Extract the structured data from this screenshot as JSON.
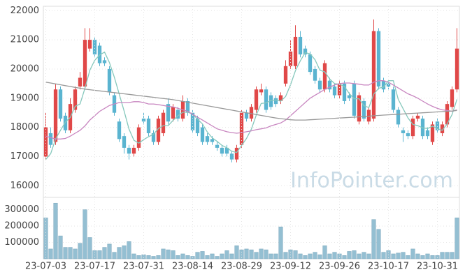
{
  "chart_data": [
    {
      "type": "candlestick",
      "watermark": "InfoPointer.com",
      "up_color": "#e04848",
      "down_color": "#5ab4d0",
      "open": [
        17000,
        17800,
        17500,
        19300,
        18400,
        17900,
        18600,
        19400,
        19400,
        20700,
        21000,
        20800,
        20300,
        20000,
        19100,
        18200,
        17700,
        17300,
        17100,
        17300,
        18300,
        18300,
        17800,
        17500,
        17800,
        18800,
        18300,
        18600,
        18300,
        18900,
        18500,
        18300,
        18000,
        17700,
        17600,
        17400,
        17300,
        17300,
        17100,
        16900,
        17400,
        18500,
        18300,
        18600,
        19200,
        19300,
        19100,
        19000,
        18900,
        19500,
        20100,
        20100,
        21100,
        20700,
        20500,
        20000,
        19600,
        19300,
        19600,
        19400,
        19100,
        19500,
        19100,
        19500,
        18200,
        18900,
        18200,
        18300,
        21300,
        19600,
        19500,
        19300,
        18600,
        17900,
        17800,
        17700,
        18300,
        18300,
        17900,
        17500,
        18200,
        17800,
        18100,
        18700,
        19300
      ],
      "high": [
        18500,
        18000,
        19500,
        19400,
        18500,
        19000,
        19400,
        19900,
        21400,
        21400,
        21100,
        20900,
        20400,
        20100,
        19200,
        18300,
        17800,
        17400,
        17400,
        18100,
        18500,
        18400,
        17900,
        18400,
        18600,
        19000,
        18800,
        18700,
        19100,
        19000,
        18600,
        18400,
        18100,
        17800,
        17700,
        17500,
        17400,
        17400,
        17200,
        17400,
        18600,
        18600,
        18800,
        19400,
        19500,
        19400,
        19200,
        19100,
        19200,
        20300,
        21000,
        21500,
        21300,
        20800,
        20600,
        20100,
        19700,
        20300,
        19700,
        19500,
        19600,
        19600,
        19200,
        19600,
        19200,
        19000,
        18700,
        21700,
        21400,
        19700,
        19600,
        19400,
        18700,
        18000,
        17900,
        18400,
        18500,
        18400,
        18000,
        18200,
        18300,
        18200,
        18900,
        19400,
        21400
      ],
      "low": [
        16900,
        17300,
        17400,
        18200,
        17800,
        17800,
        18500,
        19300,
        19300,
        20600,
        20400,
        20100,
        20100,
        19100,
        18400,
        17500,
        17100,
        16900,
        17000,
        17200,
        18100,
        17700,
        17400,
        17400,
        17700,
        18100,
        18200,
        18200,
        18200,
        18400,
        17800,
        17700,
        17400,
        17400,
        17400,
        17200,
        17000,
        17000,
        16800,
        16800,
        17300,
        18200,
        18200,
        18500,
        19100,
        18500,
        18600,
        18700,
        18800,
        19400,
        20000,
        20000,
        20400,
        20400,
        19800,
        19500,
        19200,
        19200,
        19200,
        19000,
        19000,
        18800,
        18900,
        18300,
        18100,
        18200,
        18100,
        18200,
        19300,
        19200,
        19300,
        18500,
        18000,
        17500,
        17600,
        17600,
        18200,
        17600,
        17600,
        17400,
        17800,
        17700,
        18000,
        18600,
        19200
      ],
      "close": [
        18000,
        17400,
        19300,
        18300,
        17900,
        18800,
        19300,
        19700,
        21000,
        21000,
        20500,
        20200,
        20200,
        19200,
        18500,
        17600,
        17300,
        17100,
        17300,
        18000,
        18200,
        17800,
        17500,
        18300,
        18500,
        18200,
        18700,
        18300,
        18900,
        18500,
        17900,
        17800,
        17500,
        17500,
        17500,
        17300,
        17100,
        17100,
        16900,
        17300,
        18500,
        18300,
        18700,
        19300,
        19300,
        18600,
        18700,
        18800,
        19100,
        20100,
        20600,
        21100,
        20500,
        20500,
        19900,
        19600,
        19300,
        20200,
        19300,
        19100,
        19500,
        18900,
        19000,
        18400,
        19100,
        18300,
        18600,
        21300,
        19400,
        19300,
        19400,
        18600,
        18100,
        17800,
        17700,
        18300,
        18400,
        17700,
        17700,
        18100,
        17900,
        18100,
        18800,
        19300,
        20700
      ],
      "series": [
        {
          "color": "#86c8bc",
          "values": [
            16900,
            17100,
            17600,
            17900,
            18180,
            18340,
            18720,
            18800,
            19340,
            19960,
            20300,
            20480,
            20580,
            20220,
            19720,
            19140,
            18560,
            17940,
            17560,
            17460,
            17580,
            17680,
            17760,
            17960,
            18060,
            18060,
            18240,
            18400,
            18520,
            18520,
            18460,
            18280,
            18120,
            17840,
            17640,
            17520,
            17380,
            17300,
            17180,
            17140,
            17380,
            17620,
            17940,
            18420,
            18820,
            18840,
            18920,
            18940,
            18900,
            19060,
            19460,
            19940,
            20280,
            20560,
            20520,
            20320,
            19960,
            19900,
            19660,
            19500,
            19480,
            19400,
            19160,
            18980,
            18980,
            18740,
            18680,
            19140,
            19340,
            19380,
            19600,
            19600,
            18960,
            18640,
            18320,
            18100,
            18060,
            17980,
            17960,
            18040,
            17960,
            17900,
            18120,
            18440,
            18960
          ]
        },
        {
          "color": "#c886c0",
          "values": [
            17700,
            17650,
            17600,
            17600,
            17620,
            17700,
            17800,
            17900,
            18050,
            18250,
            18400,
            18550,
            18650,
            18750,
            18800,
            18850,
            18850,
            18850,
            18880,
            18880,
            18850,
            18800,
            18800,
            18780,
            18750,
            18720,
            18700,
            18650,
            18600,
            18550,
            18450,
            18350,
            18250,
            18150,
            18050,
            17950,
            17900,
            17850,
            17820,
            17800,
            17820,
            17850,
            17880,
            17920,
            17950,
            17980,
            18050,
            18100,
            18150,
            18250,
            18400,
            18550,
            18700,
            18850,
            19000,
            19100,
            19200,
            19300,
            19380,
            19450,
            19500,
            19520,
            19520,
            19500,
            19480,
            19450,
            19450,
            19550,
            19600,
            19600,
            19550,
            19450,
            19350,
            19250,
            19150,
            19080,
            19000,
            18900,
            18800,
            18720,
            18650,
            18600,
            18580,
            18550,
            18600
          ]
        },
        {
          "color": "#999999",
          "values": [
            19550,
            19520,
            19490,
            19460,
            19430,
            19400,
            19370,
            19340,
            19310,
            19290,
            19270,
            19250,
            19230,
            19210,
            19190,
            19170,
            19150,
            19130,
            19110,
            19090,
            19070,
            19050,
            19030,
            19010,
            18990,
            18970,
            18950,
            18920,
            18890,
            18860,
            18830,
            18800,
            18770,
            18740,
            18710,
            18680,
            18650,
            18620,
            18590,
            18560,
            18530,
            18500,
            18470,
            18440,
            18410,
            18380,
            18350,
            18320,
            18300,
            18280,
            18260,
            18250,
            18250,
            18250,
            18260,
            18270,
            18280,
            18290,
            18300,
            18310,
            18320,
            18330,
            18340,
            18350,
            18360,
            18370,
            18380,
            18400,
            18410,
            18420,
            18430,
            18440,
            18450,
            18460,
            18470,
            18480,
            18490,
            18500,
            18510,
            18520,
            18530,
            18540,
            18550,
            18560,
            18580
          ]
        }
      ],
      "ylim": [
        15600,
        22150
      ],
      "yticks": [
        16000,
        17000,
        18000,
        19000,
        20000,
        21000,
        22000
      ],
      "grid": true
    },
    {
      "type": "bar",
      "color": "#94bfd2",
      "categories": [
        "23-07-03",
        null,
        null,
        null,
        null,
        null,
        null,
        null,
        null,
        null,
        "23-07-17",
        null,
        null,
        null,
        null,
        null,
        null,
        null,
        null,
        null,
        "23-07-31",
        null,
        null,
        null,
        null,
        null,
        null,
        null,
        null,
        null,
        "23-08-14",
        null,
        null,
        null,
        null,
        null,
        null,
        null,
        null,
        null,
        "23-08-29",
        null,
        null,
        null,
        null,
        null,
        null,
        null,
        null,
        null,
        "23-09-12",
        null,
        null,
        null,
        null,
        null,
        null,
        null,
        null,
        null,
        "23-09-26",
        null,
        null,
        null,
        null,
        null,
        null,
        null,
        null,
        null,
        "23-10-17",
        null,
        null,
        null,
        null,
        null,
        null,
        null,
        null,
        null,
        "23-10-31",
        null,
        null,
        null,
        null
      ],
      "values": [
        250000,
        60000,
        340000,
        140000,
        70000,
        70000,
        60000,
        95000,
        300000,
        130000,
        50000,
        50000,
        70000,
        90000,
        40000,
        70000,
        80000,
        105000,
        30000,
        20000,
        25000,
        20000,
        15000,
        20000,
        60000,
        55000,
        50000,
        20000,
        30000,
        20000,
        15000,
        40000,
        45000,
        20000,
        30000,
        15000,
        30000,
        50000,
        30000,
        80000,
        55000,
        60000,
        55000,
        40000,
        60000,
        55000,
        30000,
        30000,
        195000,
        40000,
        55000,
        50000,
        30000,
        20000,
        30000,
        40000,
        25000,
        80000,
        30000,
        40000,
        30000,
        20000,
        45000,
        50000,
        30000,
        40000,
        30000,
        240000,
        180000,
        40000,
        50000,
        30000,
        35000,
        40000,
        20000,
        60000,
        30000,
        20000,
        30000,
        20000,
        20000,
        40000,
        40000,
        40000,
        250000
      ],
      "ylim": [
        0,
        375000
      ],
      "yticks": [
        100000,
        200000,
        300000
      ],
      "grid": true
    }
  ]
}
